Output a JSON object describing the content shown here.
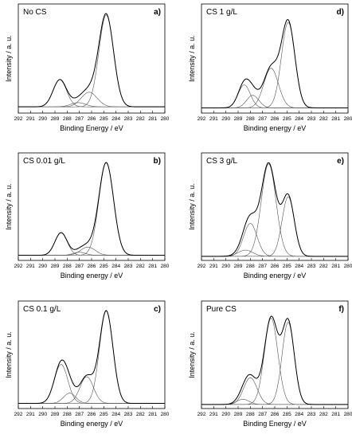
{
  "chart_data": [
    {
      "type": "line",
      "id": "a",
      "title": "No CS",
      "panel_label": "a)",
      "xlabel": "Binding Energy / eV",
      "ylabel": "Intensity / a. u.",
      "xlim": [
        292,
        280
      ],
      "xticks": [
        292,
        291,
        290,
        289,
        288,
        287,
        286,
        285,
        284,
        283,
        282,
        281,
        280
      ],
      "baseline": 0.06,
      "peaks": [
        {
          "center": 288.6,
          "height": 0.26,
          "sigma": 0.55
        },
        {
          "center": 287.1,
          "height": 0.04,
          "sigma": 0.6
        },
        {
          "center": 286.2,
          "height": 0.14,
          "sigma": 0.65
        },
        {
          "center": 284.8,
          "height": 0.88,
          "sigma": 0.6
        }
      ]
    },
    {
      "type": "line",
      "id": "b",
      "title": "CS 0.01 g/L",
      "panel_label": "b)",
      "xlabel": "Binding energy / eV",
      "ylabel": "Intensity / a. u.",
      "xlim": [
        292,
        280
      ],
      "xticks": [
        292,
        291,
        290,
        289,
        288,
        287,
        286,
        285,
        284,
        283,
        282,
        281,
        280
      ],
      "baseline": 0.05,
      "peaks": [
        {
          "center": 288.5,
          "height": 0.22,
          "sigma": 0.5
        },
        {
          "center": 287.0,
          "height": 0.03,
          "sigma": 0.5
        },
        {
          "center": 286.3,
          "height": 0.08,
          "sigma": 0.6
        },
        {
          "center": 284.8,
          "height": 0.9,
          "sigma": 0.6
        }
      ]
    },
    {
      "type": "line",
      "id": "c",
      "title": "CS 0.1 g/L",
      "panel_label": "c)",
      "xlabel": "Binding energy / eV",
      "ylabel": "Intensity / a. u.",
      "xlim": [
        292,
        280
      ],
      "xticks": [
        292,
        291,
        290,
        289,
        288,
        287,
        286,
        285,
        284,
        283,
        282,
        281,
        280
      ],
      "baseline": 0.05,
      "peaks": [
        {
          "center": 288.5,
          "height": 0.38,
          "sigma": 0.55
        },
        {
          "center": 287.8,
          "height": 0.1,
          "sigma": 0.5
        },
        {
          "center": 286.4,
          "height": 0.26,
          "sigma": 0.55
        },
        {
          "center": 284.8,
          "height": 0.9,
          "sigma": 0.55
        }
      ]
    },
    {
      "type": "line",
      "id": "d",
      "title": "CS 1 g/L",
      "panel_label": "d)",
      "xlabel": "Binding energy / eV",
      "ylabel": "Intensity / a. u.",
      "xlim": [
        292,
        280
      ],
      "xticks": [
        292,
        291,
        290,
        289,
        288,
        287,
        286,
        285,
        284,
        283,
        282,
        281,
        280
      ],
      "baseline": 0.05,
      "peaks": [
        {
          "center": 288.5,
          "height": 0.22,
          "sigma": 0.5
        },
        {
          "center": 287.8,
          "height": 0.12,
          "sigma": 0.5
        },
        {
          "center": 286.3,
          "height": 0.38,
          "sigma": 0.6
        },
        {
          "center": 284.9,
          "height": 0.82,
          "sigma": 0.55
        }
      ]
    },
    {
      "type": "line",
      "id": "e",
      "title": "CS 3 g/L",
      "panel_label": "e)",
      "xlabel": "Binding energy / eV",
      "ylabel": "Intensity / a. u.",
      "xlim": [
        292,
        280
      ],
      "xticks": [
        292,
        291,
        290,
        289,
        288,
        287,
        286,
        285,
        284,
        283,
        282,
        281,
        280
      ],
      "baseline": 0.04,
      "peaks": [
        {
          "center": 288.4,
          "height": 0.06,
          "sigma": 0.6
        },
        {
          "center": 288.0,
          "height": 0.32,
          "sigma": 0.55
        },
        {
          "center": 286.5,
          "height": 0.9,
          "sigma": 0.6
        },
        {
          "center": 284.9,
          "height": 0.58,
          "sigma": 0.5
        }
      ]
    },
    {
      "type": "line",
      "id": "f",
      "title": "Pure CS",
      "panel_label": "f)",
      "xlabel": "Binding Energy / eV",
      "ylabel": "Intensity / a. u.",
      "xlim": [
        292,
        280
      ],
      "xticks": [
        292,
        291,
        290,
        289,
        288,
        287,
        286,
        285,
        284,
        283,
        282,
        281,
        280
      ],
      "baseline": 0.04,
      "peaks": [
        {
          "center": 288.6,
          "height": 0.05,
          "sigma": 0.5
        },
        {
          "center": 288.0,
          "height": 0.26,
          "sigma": 0.55
        },
        {
          "center": 286.3,
          "height": 0.84,
          "sigma": 0.55
        },
        {
          "center": 284.9,
          "height": 0.8,
          "sigma": 0.5
        }
      ]
    }
  ]
}
